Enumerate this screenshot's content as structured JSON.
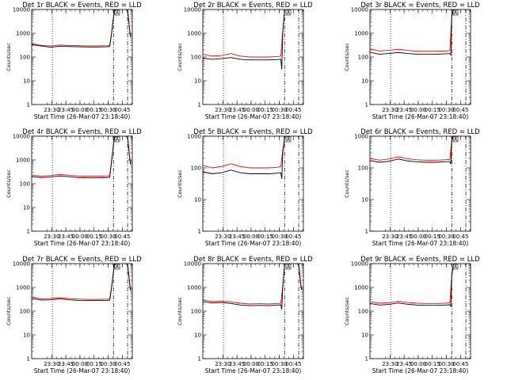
{
  "figure": {
    "xlabel": "Start Time (26-Mar-07 23:18:40)",
    "ylabel": "Counts/sec",
    "flag_marker": "A"
  },
  "colors": {
    "events": "#000000",
    "lld": "#ff0000",
    "background": "#ffffff"
  },
  "chart_data": [
    {
      "type": "line",
      "title": "Det 1r BLACK = Events, RED = LLD",
      "xlabel": "Start Time (26-Mar-07 23:18:40)",
      "ylabel": "Counts/sec",
      "yscale": "log",
      "ylim": [
        1,
        10000
      ],
      "xlim": [
        -10,
        97
      ],
      "xticks": [
        "23:30",
        "23:45",
        "00:00",
        "00:15",
        "00:30",
        "00:45"
      ],
      "yticks": [
        "1",
        "10",
        "100",
        "1000",
        "10000"
      ],
      "x_note": "minutes after 23:18:40",
      "vlines": {
        "dotted": 12,
        "dashdot": [
          77,
          92
        ]
      },
      "flag": {
        "label": "A",
        "x": 81
      },
      "series": [
        {
          "name": "Events",
          "x": [
            -10,
            0,
            10,
            20,
            30,
            40,
            50,
            60,
            70,
            73,
            75,
            78,
            82,
            86,
            88,
            90,
            92,
            94,
            95
          ],
          "values": [
            330,
            290,
            260,
            285,
            275,
            270,
            265,
            265,
            270,
            275,
            1000,
            9500,
            11000,
            10800,
            10500,
            10000,
            9000,
            1600,
            700
          ]
        },
        {
          "name": "LLD",
          "x": [
            -10,
            0,
            10,
            20,
            30,
            40,
            50,
            60,
            70,
            73,
            75,
            78,
            82,
            86,
            88,
            90,
            92,
            94,
            95
          ],
          "values": [
            370,
            310,
            290,
            320,
            305,
            300,
            295,
            295,
            300,
            305,
            1100,
            10000,
            11500,
            11200,
            11000,
            10500,
            9500,
            1800,
            800
          ]
        }
      ]
    },
    {
      "type": "line",
      "title": "Det 2r BLACK = Events, RED = LLD",
      "xlabel": "Start Time (26-Mar-07 23:18:40)",
      "ylabel": "Counts/sec",
      "yscale": "log",
      "ylim": [
        1,
        10000
      ],
      "xlim": [
        -10,
        97
      ],
      "xticks": [
        "23:30",
        "23:45",
        "00:00",
        "00:15",
        "00:30",
        "00:45"
      ],
      "yticks": [
        "1",
        "10",
        "100",
        "1000",
        "10000"
      ],
      "vlines": {
        "dotted": 12,
        "dashdot": [
          77,
          92
        ]
      },
      "flag": {
        "label": "A",
        "x": 81
      },
      "series": [
        {
          "name": "Events",
          "x": [
            -10,
            0,
            10,
            20,
            30,
            40,
            50,
            60,
            70,
            73,
            74,
            75,
            77,
            79,
            82
          ],
          "values": [
            90,
            80,
            85,
            95,
            80,
            75,
            75,
            75,
            78,
            80,
            30,
            1000,
            10000,
            11000,
            10500
          ]
        },
        {
          "name": "LLD",
          "x": [
            -10,
            0,
            10,
            20,
            30,
            40,
            50,
            60,
            70,
            73,
            75,
            77,
            79,
            82
          ],
          "values": [
            130,
            110,
            115,
            140,
            110,
            100,
            100,
            100,
            105,
            110,
            1200,
            10500,
            11500,
            11000
          ]
        }
      ]
    },
    {
      "type": "line",
      "title": "Det 3r BLACK = Events, RED = LLD",
      "xlabel": "Start Time (26-Mar-07 23:18:40)",
      "ylabel": "Counts/sec",
      "yscale": "log",
      "ylim": [
        1,
        10000
      ],
      "xlim": [
        -10,
        97
      ],
      "xticks": [
        "23:30",
        "23:45",
        "00:00",
        "00:15",
        "00:30",
        "00:45"
      ],
      "yticks": [
        "1",
        "10",
        "100",
        "1000",
        "10000"
      ],
      "vlines": {
        "dotted": 12,
        "dashdot": [
          77,
          92
        ]
      },
      "flag": {
        "label": "A",
        "x": 81
      },
      "series": [
        {
          "name": "Events",
          "x": [
            -10,
            0,
            10,
            20,
            30,
            40,
            50,
            60,
            70,
            75,
            76,
            77,
            79
          ],
          "values": [
            160,
            130,
            140,
            155,
            140,
            130,
            130,
            130,
            135,
            140,
            120,
            5000,
            11000
          ]
        },
        {
          "name": "LLD",
          "x": [
            -10,
            0,
            10,
            20,
            30,
            40,
            50,
            60,
            70,
            75,
            77,
            79
          ],
          "values": [
            220,
            180,
            190,
            210,
            190,
            175,
            175,
            175,
            180,
            185,
            6000,
            11500
          ]
        }
      ]
    },
    {
      "type": "line",
      "title": "Det 4r BLACK = Events, RED = LLD",
      "xlabel": "Start Time (26-Mar-07 23:18:40)",
      "ylabel": "Counts/sec",
      "yscale": "log",
      "ylim": [
        1,
        10000
      ],
      "xlim": [
        -10,
        97
      ],
      "xticks": [
        "23:30",
        "23:45",
        "00:00",
        "00:15",
        "00:30",
        "00:45"
      ],
      "yticks": [
        "1",
        "10",
        "100",
        "1000",
        "10000"
      ],
      "vlines": {
        "dotted": 12,
        "dashdot": [
          77,
          92
        ]
      },
      "flag": {
        "label": "A",
        "x": 81
      },
      "series": [
        {
          "name": "Events",
          "x": [
            -10,
            0,
            10,
            20,
            30,
            40,
            50,
            60,
            70,
            73,
            75,
            78,
            82,
            86,
            88,
            90,
            92,
            94,
            95
          ],
          "values": [
            200,
            180,
            190,
            210,
            195,
            180,
            175,
            175,
            180,
            185,
            900,
            9000,
            11000,
            10800,
            10500,
            10000,
            9000,
            1500,
            650
          ]
        },
        {
          "name": "LLD",
          "x": [
            -10,
            0,
            10,
            20,
            30,
            40,
            50,
            60,
            70,
            73,
            75,
            78,
            82,
            86,
            88,
            90,
            92,
            94,
            95
          ],
          "values": [
            230,
            205,
            220,
            245,
            225,
            210,
            205,
            205,
            210,
            215,
            1000,
            9500,
            11500,
            11200,
            11000,
            10500,
            9500,
            1700,
            750
          ]
        }
      ]
    },
    {
      "type": "line",
      "title": "Det 5r BLACK = Events, RED = LLD",
      "xlabel": "Start Time (26-Mar-07 23:18:40)",
      "ylabel": "Counts/sec",
      "yscale": "log",
      "ylim": [
        1,
        1000
      ],
      "xlim": [
        -10,
        97
      ],
      "xticks": [
        "23:30",
        "23:45",
        "00:00",
        "00:15",
        "00:30",
        "00:45"
      ],
      "yticks": [
        "1",
        "10",
        "100",
        "1000"
      ],
      "vlines": {
        "dotted": 12,
        "dashdot": [
          77,
          92
        ]
      },
      "flag": {
        "label": "A",
        "x": 81
      },
      "series": [
        {
          "name": "Events",
          "x": [
            -10,
            0,
            10,
            20,
            30,
            40,
            50,
            60,
            70,
            73,
            74,
            75,
            77,
            79,
            82
          ],
          "values": [
            75,
            65,
            70,
            85,
            70,
            65,
            65,
            65,
            68,
            70,
            45,
            300,
            900,
            1100,
            1050
          ]
        },
        {
          "name": "LLD",
          "x": [
            -10,
            0,
            10,
            20,
            30,
            40,
            50,
            60,
            70,
            73,
            75,
            77,
            79,
            82
          ],
          "values": [
            120,
            100,
            110,
            135,
            110,
            100,
            100,
            100,
            105,
            110,
            350,
            950,
            1150,
            1100
          ]
        }
      ]
    },
    {
      "type": "line",
      "title": "Det 6r BLACK = Events, RED = LLD",
      "xlabel": "Start Time (26-Mar-07 23:18:40)",
      "ylabel": "Counts/sec",
      "yscale": "log",
      "ylim": [
        1,
        1000
      ],
      "xlim": [
        -10,
        97
      ],
      "xticks": [
        "23:30",
        "23:45",
        "00:00",
        "00:15",
        "00:30",
        "00:45"
      ],
      "yticks": [
        "1",
        "10",
        "100",
        "1000"
      ],
      "vlines": {
        "dotted": 12,
        "dashdot": [
          77,
          92
        ]
      },
      "flag": {
        "label": "A",
        "x": 81
      },
      "series": [
        {
          "name": "Events",
          "x": [
            -10,
            0,
            10,
            20,
            30,
            40,
            50,
            60,
            70,
            75,
            76,
            77,
            79
          ],
          "values": [
            170,
            150,
            160,
            190,
            165,
            155,
            150,
            150,
            155,
            160,
            130,
            700,
            1100
          ]
        },
        {
          "name": "LLD",
          "x": [
            -10,
            0,
            10,
            20,
            30,
            40,
            50,
            60,
            70,
            75,
            77,
            79
          ],
          "values": [
            200,
            175,
            190,
            225,
            195,
            180,
            175,
            175,
            180,
            185,
            750,
            1150
          ]
        }
      ]
    },
    {
      "type": "line",
      "title": "Det 7r BLACK = Events, RED = LLD",
      "xlabel": "Start Time (26-Mar-07 23:18:40)",
      "ylabel": "Counts/sec",
      "yscale": "log",
      "ylim": [
        1,
        10000
      ],
      "xlim": [
        -10,
        97
      ],
      "xticks": [
        "23:30",
        "23:45",
        "00:00",
        "00:15",
        "00:30",
        "00:45"
      ],
      "yticks": [
        "1",
        "10",
        "100",
        "1000",
        "10000"
      ],
      "vlines": {
        "dotted": 12,
        "dashdot": [
          77,
          92
        ]
      },
      "flag": {
        "label": "A",
        "x": 81
      },
      "series": [
        {
          "name": "Events",
          "x": [
            -10,
            0,
            10,
            20,
            30,
            40,
            50,
            60,
            70,
            73,
            75,
            78,
            82,
            86,
            88,
            90,
            92,
            94,
            95
          ],
          "values": [
            350,
            290,
            300,
            330,
            300,
            285,
            280,
            280,
            285,
            290,
            1000,
            9500,
            11000,
            10800,
            10500,
            10000,
            9000,
            1700,
            750
          ]
        },
        {
          "name": "LLD",
          "x": [
            -10,
            0,
            10,
            20,
            30,
            40,
            50,
            60,
            70,
            73,
            75,
            78,
            82,
            86,
            88,
            90,
            92,
            94,
            95
          ],
          "values": [
            400,
            330,
            340,
            370,
            340,
            320,
            315,
            315,
            320,
            325,
            1100,
            10000,
            11500,
            11200,
            11000,
            10500,
            9500,
            1900,
            850
          ]
        }
      ]
    },
    {
      "type": "line",
      "title": "Det 8r BLACK = Events, RED = LLD",
      "xlabel": "Start Time (26-Mar-07 23:18:40)",
      "ylabel": "Counts/sec",
      "yscale": "log",
      "ylim": [
        1,
        10000
      ],
      "xlim": [
        -10,
        97
      ],
      "xticks": [
        "23:30",
        "23:45",
        "00:00",
        "00:15",
        "00:30",
        "00:45"
      ],
      "yticks": [
        "1",
        "10",
        "100",
        "1000",
        "10000"
      ],
      "vlines": {
        "dotted": 12,
        "dashdot": [
          77,
          92
        ]
      },
      "flag": {
        "label": "A",
        "x": 81
      },
      "series": [
        {
          "name": "Events",
          "x": [
            -10,
            0,
            10,
            20,
            30,
            40,
            50,
            60,
            70,
            73,
            74,
            75,
            77,
            79,
            82,
            86,
            90,
            92,
            94,
            95
          ],
          "values": [
            250,
            220,
            230,
            210,
            180,
            170,
            175,
            170,
            180,
            185,
            120,
            1000,
            9500,
            11000,
            10800,
            10500,
            10000,
            9000,
            1500,
            800
          ]
        },
        {
          "name": "LLD",
          "x": [
            -10,
            0,
            10,
            20,
            30,
            40,
            50,
            60,
            70,
            73,
            75,
            77,
            79,
            82,
            86,
            90,
            92,
            94,
            95
          ],
          "values": [
            290,
            255,
            265,
            245,
            215,
            200,
            205,
            200,
            210,
            215,
            1100,
            10000,
            11500,
            11200,
            11000,
            10500,
            9500,
            1700,
            900
          ]
        }
      ]
    },
    {
      "type": "line",
      "title": "Det 9r BLACK = Events, RED = LLD",
      "xlabel": "Start Time (26-Mar-07 23:18:40)",
      "ylabel": "Counts/sec",
      "yscale": "log",
      "ylim": [
        1,
        10000
      ],
      "xlim": [
        -10,
        97
      ],
      "xticks": [
        "23:30",
        "23:45",
        "00:00",
        "00:15",
        "00:30",
        "00:45"
      ],
      "yticks": [
        "1",
        "10",
        "100",
        "1000",
        "10000"
      ],
      "vlines": {
        "dotted": 12,
        "dashdot": [
          77,
          92
        ]
      },
      "flag": {
        "label": "A",
        "x": 81
      },
      "series": [
        {
          "name": "Events",
          "x": [
            -10,
            0,
            10,
            20,
            30,
            40,
            50,
            60,
            70,
            75,
            76,
            77,
            79
          ],
          "values": [
            210,
            180,
            190,
            220,
            195,
            180,
            175,
            175,
            180,
            185,
            160,
            3000,
            11000
          ]
        },
        {
          "name": "LLD",
          "x": [
            -10,
            0,
            10,
            20,
            30,
            40,
            50,
            60,
            70,
            75,
            77,
            79
          ],
          "values": [
            250,
            215,
            225,
            260,
            230,
            215,
            210,
            210,
            215,
            220,
            3500,
            11500
          ]
        }
      ]
    }
  ]
}
